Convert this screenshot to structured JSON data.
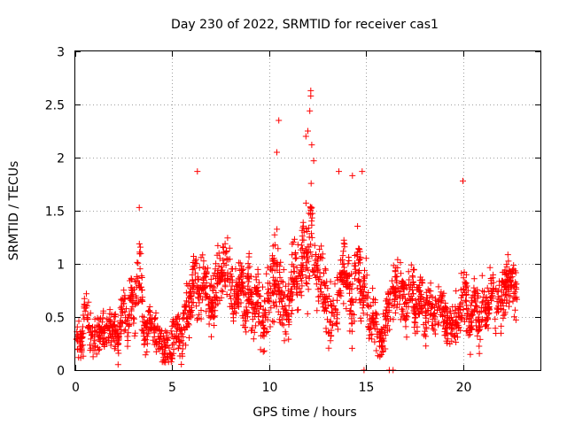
{
  "chart_data": {
    "type": "scatter",
    "title": "Day 230 of 2022, SRMTID for receiver cas1",
    "xlabel": "GPS time / hours",
    "ylabel": "SRMTID / TECUs",
    "xlim": [
      0,
      24
    ],
    "ylim": [
      0,
      3
    ],
    "xticks": [
      0,
      5,
      10,
      15,
      20
    ],
    "xtick_labels": [
      "0",
      "5",
      "10",
      "15",
      "20"
    ],
    "yticks": [
      0,
      0.5,
      1,
      1.5,
      2,
      2.5,
      3
    ],
    "ytick_labels": [
      "0",
      "0.5",
      "1",
      "1.5",
      "2",
      "2.5",
      "3"
    ],
    "grid": true,
    "marker": "plus",
    "series": [
      {
        "name": "cas1",
        "color": "#ff0000",
        "envelope": {
          "x": [
            0,
            0.5,
            1,
            1.5,
            2,
            2.5,
            3,
            3.3,
            3.6,
            4,
            4.5,
            5,
            5.5,
            5.8,
            6,
            6.3,
            6.6,
            7,
            7.5,
            8,
            8.5,
            9,
            9.5,
            10,
            10.4,
            10.8,
            11.2,
            11.6,
            12,
            12.3,
            12.6,
            13,
            13.4,
            13.8,
            14.2,
            14.6,
            15,
            15.3,
            15.6,
            16,
            16.4,
            16.8,
            17.2,
            17.6,
            18,
            18.5,
            19,
            19.5,
            20,
            20.5,
            21,
            21.5,
            22,
            22.4,
            22.8
          ],
          "typical": [
            0.15,
            0.45,
            0.35,
            0.25,
            0.4,
            0.45,
            0.6,
            0.9,
            0.4,
            0.35,
            0.3,
            0.25,
            0.35,
            0.5,
            0.75,
            0.8,
            0.7,
            0.75,
            0.85,
            0.8,
            0.7,
            0.65,
            0.6,
            0.55,
            0.8,
            0.7,
            0.75,
            0.95,
            1.2,
            1.1,
            0.8,
            0.65,
            0.6,
            0.8,
            0.7,
            0.9,
            0.7,
            0.5,
            0.35,
            0.4,
            0.65,
            0.8,
            0.75,
            0.65,
            0.6,
            0.55,
            0.55,
            0.55,
            0.6,
            0.55,
            0.55,
            0.65,
            0.7,
            0.7,
            0.65
          ],
          "spread": [
            0.15,
            0.3,
            0.3,
            0.25,
            0.3,
            0.3,
            0.35,
            0.45,
            0.3,
            0.25,
            0.25,
            0.25,
            0.3,
            0.35,
            0.45,
            0.45,
            0.4,
            0.4,
            0.4,
            0.4,
            0.4,
            0.35,
            0.4,
            0.45,
            0.55,
            0.45,
            0.5,
            0.55,
            0.65,
            0.55,
            0.45,
            0.4,
            0.4,
            0.45,
            0.45,
            0.5,
            0.45,
            0.35,
            0.3,
            0.3,
            0.4,
            0.4,
            0.4,
            0.35,
            0.35,
            0.3,
            0.3,
            0.35,
            0.4,
            0.35,
            0.35,
            0.35,
            0.35,
            0.35,
            0.35
          ]
        },
        "notable_points": [
          {
            "x": 6.3,
            "y": 1.87
          },
          {
            "x": 10.5,
            "y": 2.35
          },
          {
            "x": 10.4,
            "y": 2.05
          },
          {
            "x": 11.9,
            "y": 2.2
          },
          {
            "x": 12.0,
            "y": 2.25
          },
          {
            "x": 12.15,
            "y": 2.63
          },
          {
            "x": 12.15,
            "y": 2.58
          },
          {
            "x": 12.1,
            "y": 2.44
          },
          {
            "x": 12.2,
            "y": 2.12
          },
          {
            "x": 12.3,
            "y": 1.97
          },
          {
            "x": 13.6,
            "y": 1.87
          },
          {
            "x": 14.3,
            "y": 1.83
          },
          {
            "x": 14.8,
            "y": 1.87
          },
          {
            "x": 20.0,
            "y": 1.78
          },
          {
            "x": 3.3,
            "y": 1.53
          },
          {
            "x": 16.2,
            "y": 0.0
          },
          {
            "x": 16.4,
            "y": 0.0
          },
          {
            "x": 14.9,
            "y": 0.0
          }
        ],
        "point_count": 2200,
        "seed": 230
      }
    ]
  }
}
